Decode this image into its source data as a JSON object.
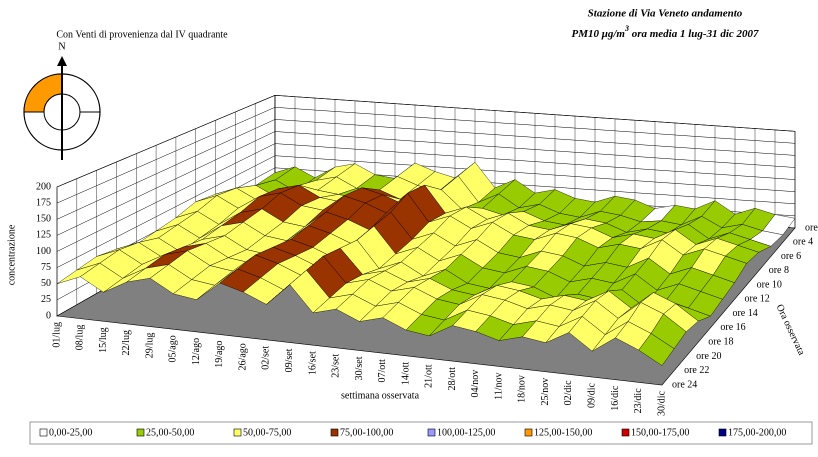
{
  "chart_data": {
    "type": "surface",
    "title": "Con Venti di provenienza dal IV quadrante",
    "station_title": "Stazione di Via Veneto andamento",
    "subtitle": {
      "pollutant": "PM10 ",
      "unit": "μg/m",
      "unit_exp": "3",
      "period": " ora media  1 lug-31 dic 2007"
    },
    "compass_label": "N",
    "y_label": "concentrazione",
    "x_label": "settimana osservata",
    "z_label": "Ora osservata",
    "ylim": [
      0,
      200
    ],
    "yticks": [
      0,
      25,
      50,
      75,
      100,
      125,
      150,
      175,
      200
    ],
    "categories": [
      "01/lug",
      "08/lug",
      "15/lug",
      "22/lug",
      "29/lug",
      "05/ago",
      "12/ago",
      "19/ago",
      "26/ago",
      "02/set",
      "09/set",
      "16/set",
      "23/set",
      "30/set",
      "07/ott",
      "14/ott",
      "21/ott",
      "28/ott",
      "04/nov",
      "11/nov",
      "18/nov",
      "25/nov",
      "02/dic",
      "09/dic",
      "16/dic",
      "23/dic",
      "30/dic"
    ],
    "series": [
      {
        "name": "ore 2",
        "values": [
          40,
          55,
          35,
          60,
          70,
          50,
          45,
          80,
          65,
          55,
          90,
          40,
          60,
          35,
          45,
          30,
          25,
          40,
          35,
          20,
          30,
          25,
          45,
          20,
          35,
          25,
          20
        ]
      },
      {
        "name": "ore 4",
        "values": [
          35,
          50,
          30,
          55,
          65,
          45,
          40,
          75,
          60,
          50,
          85,
          35,
          55,
          30,
          40,
          25,
          20,
          35,
          30,
          20,
          25,
          20,
          40,
          20,
          30,
          20,
          15
        ]
      },
      {
        "name": "ore 6",
        "values": [
          45,
          60,
          40,
          65,
          60,
          55,
          50,
          70,
          55,
          60,
          80,
          45,
          50,
          40,
          50,
          35,
          30,
          45,
          40,
          25,
          35,
          30,
          50,
          25,
          40,
          30,
          20
        ]
      },
      {
        "name": "ore 8",
        "values": [
          60,
          75,
          55,
          80,
          90,
          70,
          65,
          95,
          85,
          70,
          110,
          60,
          75,
          55,
          70,
          50,
          45,
          60,
          55,
          40,
          50,
          45,
          65,
          40,
          55,
          45,
          35
        ]
      },
      {
        "name": "ore 10",
        "values": [
          65,
          80,
          60,
          85,
          95,
          75,
          70,
          100,
          90,
          75,
          115,
          65,
          80,
          60,
          75,
          55,
          50,
          65,
          60,
          45,
          55,
          50,
          70,
          45,
          60,
          50,
          40
        ]
      },
      {
        "name": "ore 12",
        "values": [
          55,
          70,
          50,
          75,
          85,
          65,
          60,
          90,
          80,
          65,
          100,
          55,
          70,
          50,
          65,
          45,
          40,
          55,
          50,
          35,
          45,
          40,
          60,
          35,
          50,
          40,
          30
        ]
      },
      {
        "name": "ore 14",
        "values": [
          50,
          65,
          45,
          70,
          80,
          60,
          55,
          85,
          75,
          60,
          95,
          50,
          65,
          45,
          60,
          40,
          35,
          50,
          45,
          30,
          40,
          35,
          55,
          30,
          45,
          35,
          25
        ]
      },
      {
        "name": "ore 16",
        "values": [
          45,
          60,
          40,
          65,
          75,
          55,
          50,
          80,
          70,
          55,
          90,
          45,
          60,
          40,
          55,
          35,
          30,
          45,
          40,
          25,
          35,
          30,
          50,
          25,
          40,
          30,
          20
        ]
      },
      {
        "name": "ore 18",
        "values": [
          55,
          70,
          50,
          70,
          80,
          60,
          55,
          85,
          75,
          60,
          95,
          55,
          65,
          50,
          60,
          45,
          40,
          60,
          55,
          45,
          55,
          50,
          70,
          45,
          75,
          60,
          35
        ]
      },
      {
        "name": "ore 20",
        "values": [
          60,
          75,
          55,
          75,
          85,
          65,
          60,
          90,
          80,
          65,
          100,
          60,
          70,
          55,
          65,
          50,
          45,
          65,
          60,
          50,
          60,
          55,
          75,
          50,
          80,
          65,
          40
        ]
      },
      {
        "name": "ore 22",
        "values": [
          55,
          70,
          50,
          70,
          80,
          60,
          55,
          85,
          75,
          60,
          95,
          55,
          65,
          50,
          60,
          45,
          40,
          60,
          55,
          45,
          55,
          50,
          70,
          45,
          70,
          55,
          35
        ]
      },
      {
        "name": "ore 24",
        "values": [
          50,
          65,
          45,
          65,
          75,
          55,
          50,
          80,
          70,
          55,
          90,
          50,
          60,
          45,
          55,
          40,
          35,
          55,
          50,
          40,
          50,
          45,
          65,
          40,
          65,
          50,
          30
        ]
      }
    ],
    "bands": [
      {
        "label": "0,00-25,00",
        "color": "#ffffff",
        "range": [
          0,
          25
        ]
      },
      {
        "label": "25,00-50,00",
        "color": "#99cc00",
        "range": [
          25,
          50
        ]
      },
      {
        "label": "50,00-75,00",
        "color": "#ffff66",
        "range": [
          50,
          75
        ]
      },
      {
        "label": "75,00-100,00",
        "color": "#993300",
        "range": [
          75,
          100
        ]
      },
      {
        "label": "100,00-125,00",
        "color": "#9999ff",
        "range": [
          100,
          125
        ]
      },
      {
        "label": "125,00-150,00",
        "color": "#ff9900",
        "range": [
          125,
          150
        ]
      },
      {
        "label": "150,00-175,00",
        "color": "#cc0000",
        "range": [
          150,
          175
        ]
      },
      {
        "label": "175,00-200,00",
        "color": "#000080",
        "range": [
          175,
          200
        ]
      }
    ]
  }
}
